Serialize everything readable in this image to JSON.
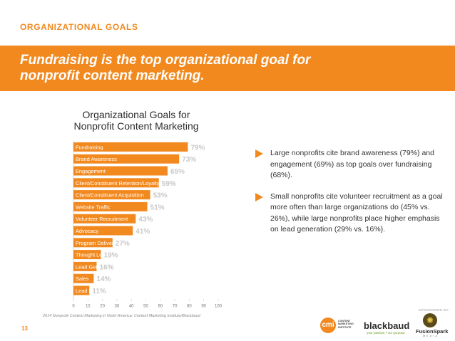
{
  "header": {
    "section_label": "ORGANIZATIONAL GOALS",
    "title_line1": "Fundraising is the top organizational goal for",
    "title_line2": "nonprofit content marketing."
  },
  "chart_title": {
    "line1": "Organizational Goals for",
    "line2": "Nonprofit Content Marketing"
  },
  "chart_data": {
    "type": "bar",
    "orientation": "horizontal",
    "title": "Organizational Goals for Nonprofit Content Marketing",
    "categories": [
      "Fundraising",
      "Brand Awareness",
      "Engagement",
      "Client/Constituent Retention/Loyalty",
      "Client/Constituent Acquisition",
      "Website Traffic",
      "Volunteer Recruitment",
      "Advocacy",
      "Program Delivery",
      "Thought Leadership",
      "Lead Generation",
      "Sales",
      "Lead Management/Nurturing"
    ],
    "values": [
      79,
      73,
      65,
      59,
      53,
      51,
      43,
      41,
      27,
      19,
      16,
      14,
      11
    ],
    "value_labels": [
      "79%",
      "73%",
      "65%",
      "59%",
      "53%",
      "51%",
      "43%",
      "41%",
      "27%",
      "19%",
      "16%",
      "14%",
      "11%"
    ],
    "xlim": [
      0,
      100
    ],
    "xticks": [
      0,
      10,
      20,
      30,
      40,
      50,
      60,
      70,
      80,
      90,
      100
    ],
    "xlabel": "",
    "ylabel": "",
    "bar_color": "#f2891f",
    "label_color": "#c8c8c8"
  },
  "bullets": [
    {
      "text": "Large nonprofits cite brand awareness (79%) and engagement (69%) as top goals over fundraising (68%)."
    },
    {
      "text": "Small nonprofits cite volunteer recruitment as a goal more often than large organizations do (45% vs. 26%), while large nonprofits place higher emphasis on lead generation (29% vs. 16%)."
    }
  ],
  "footer": {
    "source": "2014 Nonprofit Content Marketing in North America: Content Marketing Institute/Blackbaud",
    "page_number": "13",
    "sponsored_by": "SPONSORED BY:",
    "cmi_mark": "cmi",
    "cmi_line1": "CONTENT",
    "cmi_line2": "MARKETING",
    "cmi_line3": "INSTITUTE",
    "blackbaud_name": "blackbaud",
    "blackbaud_tagline": "your passion • our purpose",
    "fusionspark_name": "FusionSpark",
    "fusionspark_sub": "MEDIA"
  },
  "colors": {
    "accent": "#f2891f",
    "text_dark": "#2d2d2d"
  }
}
